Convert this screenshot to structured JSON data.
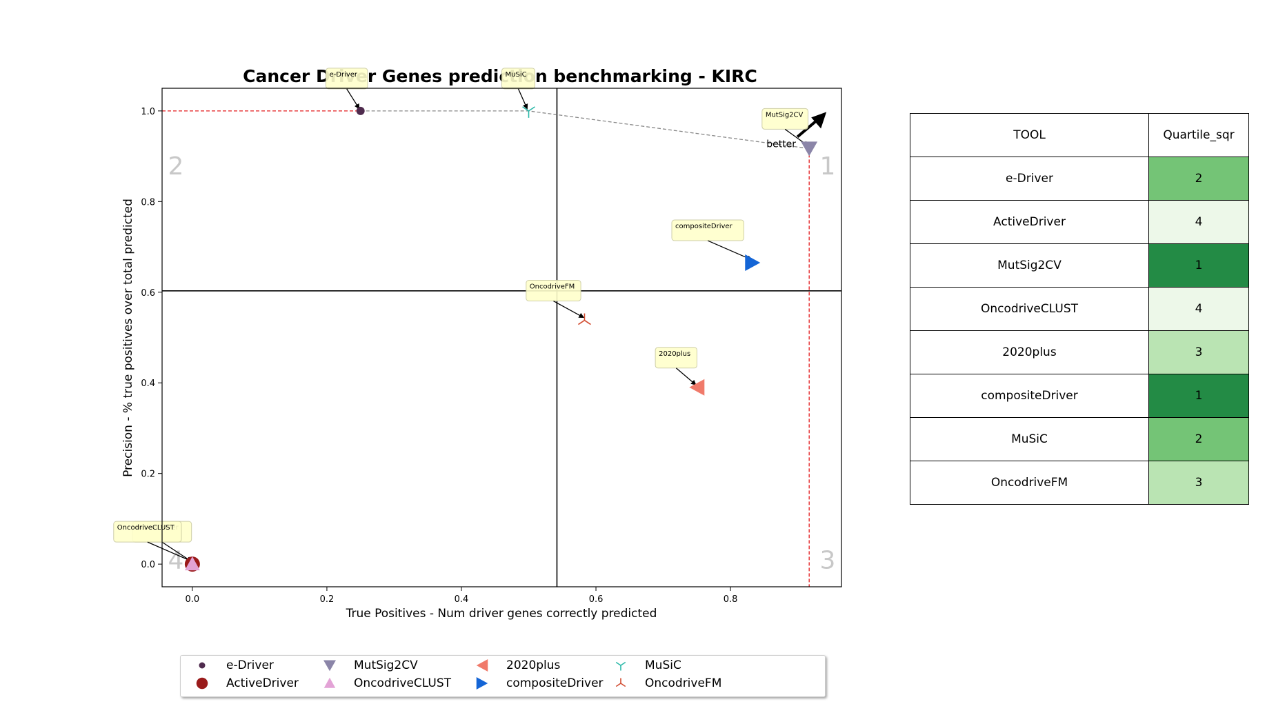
{
  "chart_data": {
    "type": "scatter",
    "title": "Cancer Driver Genes prediction benchmarking - KIRC",
    "xlabel": "True Positives - Num driver genes correctly predicted",
    "ylabel": "Precision - % true positives over total predicted",
    "xlim": [
      -0.045,
      0.965
    ],
    "ylim": [
      -0.05,
      1.05
    ],
    "xticks": [
      "0.0",
      "0.2",
      "0.4",
      "0.6",
      "0.8"
    ],
    "yticks": [
      "0.0",
      "0.2",
      "0.4",
      "0.6",
      "0.8",
      "1.0"
    ],
    "quartile_lines": {
      "x": 0.542,
      "y": 0.603
    },
    "quadrant_labels": [
      "1",
      "2",
      "3",
      "4"
    ],
    "better_label": "better",
    "legend_placement": "bottom",
    "grid": false,
    "series": [
      {
        "name": "e-Driver",
        "x": 0.25,
        "y": 1.0,
        "marker": "circle-small",
        "color": "#4f2b4e",
        "quartile": "2",
        "quartile_color": "#74c476"
      },
      {
        "name": "ActiveDriver",
        "x": 0.0,
        "y": 0.0,
        "marker": "circle",
        "color": "#9a1b1b",
        "quartile": "4",
        "quartile_color": "#edf8e9"
      },
      {
        "name": "MutSig2CV",
        "x": 0.917,
        "y": 0.917,
        "marker": "triangle-down",
        "color": "#8b85a8",
        "quartile": "1",
        "quartile_color": "#238b45"
      },
      {
        "name": "OncodriveCLUST",
        "x": 0.0,
        "y": 0.0,
        "marker": "triangle-up",
        "color": "#e3a3d6",
        "quartile": "4",
        "quartile_color": "#edf8e9"
      },
      {
        "name": "2020plus",
        "x": 0.75,
        "y": 0.39,
        "marker": "triangle-left",
        "color": "#f07a6a",
        "quartile": "3",
        "quartile_color": "#bae4b3"
      },
      {
        "name": "compositeDriver",
        "x": 0.833,
        "y": 0.665,
        "marker": "triangle-right",
        "color": "#1465d6",
        "quartile": "1",
        "quartile_color": "#238b45"
      },
      {
        "name": "MuSiC",
        "x": 0.5,
        "y": 1.0,
        "marker": "tri-down",
        "color": "#2ab8a8",
        "quartile": "2",
        "quartile_color": "#74c476"
      },
      {
        "name": "OncodriveFM",
        "x": 0.583,
        "y": 0.538,
        "marker": "tri-up",
        "color": "#d14a2e",
        "quartile": "3",
        "quartile_color": "#bae4b3"
      }
    ],
    "pareto_frontier": [
      "e-Driver",
      "MuSiC",
      "MutSig2CV"
    ]
  },
  "table": {
    "header_tool": "TOOL",
    "header_quartile": "Quartile_sqr"
  }
}
